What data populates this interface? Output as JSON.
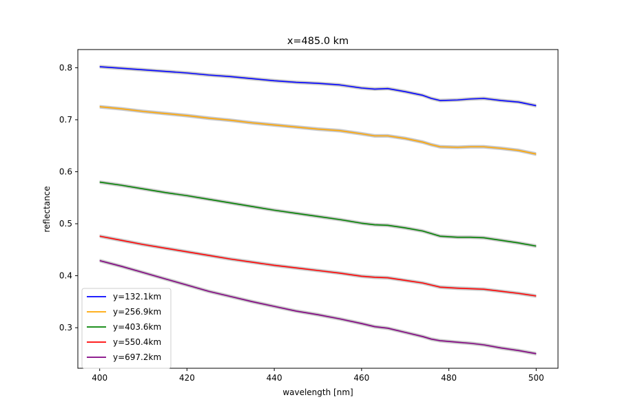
{
  "chart_data": {
    "type": "line",
    "title": "x=485.0 km",
    "xlabel": "wavelength [nm]",
    "ylabel": "reflectance",
    "xlim": [
      395,
      505
    ],
    "ylim": [
      0.222,
      0.835
    ],
    "xticks": [
      400,
      420,
      440,
      460,
      480,
      500
    ],
    "yticks": [
      0.3,
      0.4,
      0.5,
      0.6,
      0.7,
      0.8
    ],
    "xtick_labels": [
      "400",
      "420",
      "440",
      "460",
      "480",
      "500"
    ],
    "ytick_labels": [
      "0.3",
      "0.4",
      "0.5",
      "0.6",
      "0.7",
      "0.8"
    ],
    "grid": false,
    "legend_position": "lower-left",
    "uncertainty_band_color": "#c8c8c8",
    "x": [
      400,
      405,
      410,
      415,
      420,
      425,
      430,
      435,
      440,
      445,
      450,
      455,
      460,
      463,
      466,
      470,
      474,
      476,
      478,
      482,
      485,
      488,
      492,
      496,
      500
    ],
    "series": [
      {
        "name": "y=132.1km",
        "color": "#0000ff",
        "values": [
          0.802,
          0.799,
          0.796,
          0.793,
          0.79,
          0.786,
          0.783,
          0.779,
          0.775,
          0.772,
          0.77,
          0.767,
          0.761,
          0.759,
          0.76,
          0.754,
          0.747,
          0.741,
          0.737,
          0.738,
          0.74,
          0.741,
          0.737,
          0.734,
          0.727
        ]
      },
      {
        "name": "y=256.9km",
        "color": "#ffa500",
        "values": [
          0.725,
          0.721,
          0.716,
          0.712,
          0.708,
          0.703,
          0.699,
          0.694,
          0.69,
          0.686,
          0.682,
          0.679,
          0.673,
          0.669,
          0.669,
          0.664,
          0.657,
          0.652,
          0.648,
          0.647,
          0.648,
          0.648,
          0.645,
          0.641,
          0.634
        ]
      },
      {
        "name": "y=403.6km",
        "color": "#008000",
        "values": [
          0.58,
          0.574,
          0.567,
          0.56,
          0.554,
          0.547,
          0.54,
          0.533,
          0.526,
          0.52,
          0.514,
          0.508,
          0.501,
          0.498,
          0.497,
          0.492,
          0.486,
          0.481,
          0.476,
          0.474,
          0.474,
          0.473,
          0.468,
          0.463,
          0.457
        ]
      },
      {
        "name": "y=550.4km",
        "color": "#ff0000",
        "values": [
          0.476,
          0.468,
          0.46,
          0.453,
          0.446,
          0.439,
          0.432,
          0.426,
          0.42,
          0.415,
          0.41,
          0.405,
          0.399,
          0.397,
          0.396,
          0.391,
          0.386,
          0.382,
          0.378,
          0.376,
          0.375,
          0.374,
          0.37,
          0.366,
          0.361
        ]
      },
      {
        "name": "y=697.2km",
        "color": "#800080",
        "values": [
          0.429,
          0.418,
          0.406,
          0.394,
          0.382,
          0.37,
          0.36,
          0.35,
          0.341,
          0.332,
          0.325,
          0.317,
          0.308,
          0.302,
          0.299,
          0.291,
          0.283,
          0.278,
          0.275,
          0.272,
          0.27,
          0.267,
          0.261,
          0.256,
          0.25
        ]
      }
    ]
  }
}
